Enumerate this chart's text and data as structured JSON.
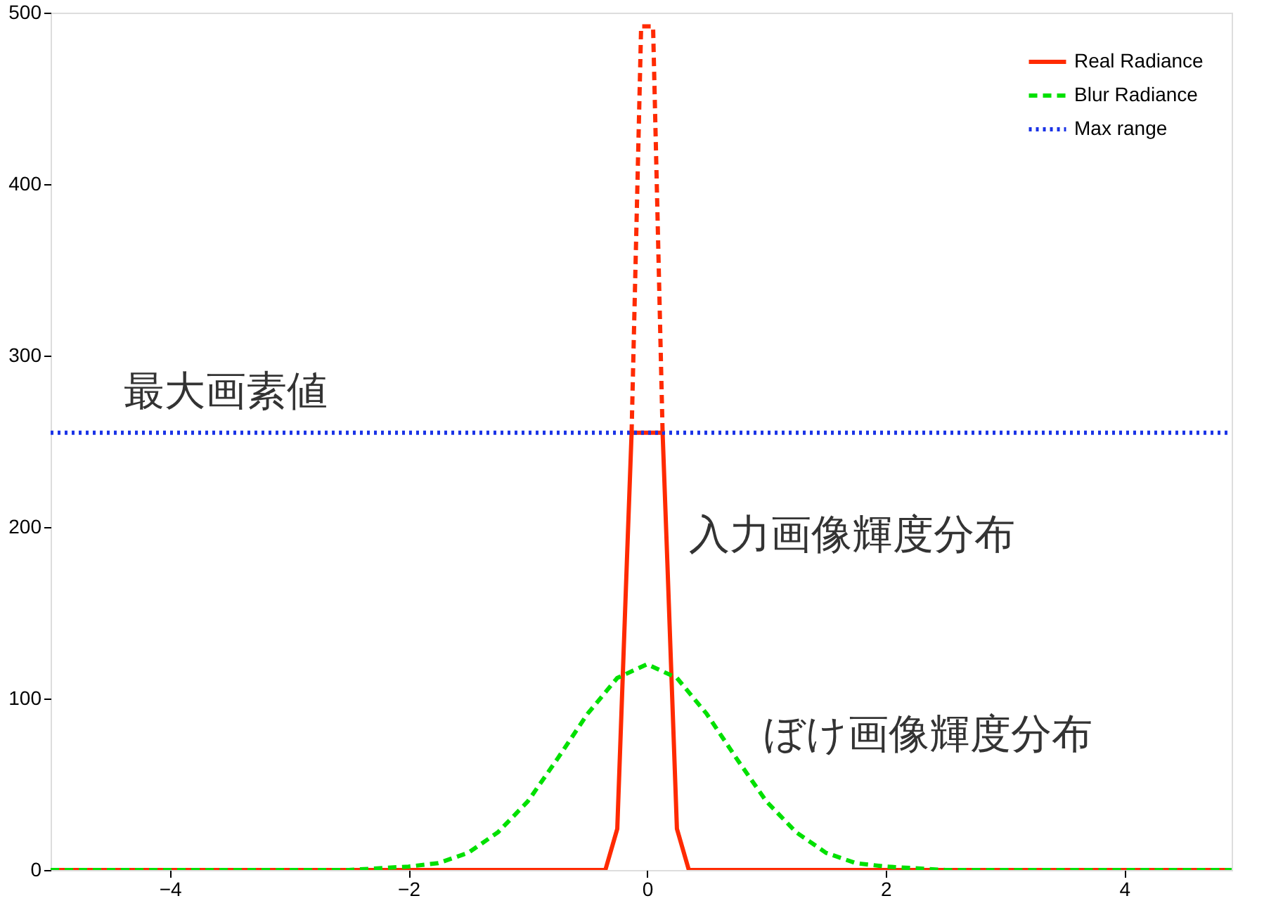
{
  "chart_data": {
    "type": "line",
    "xlim": [
      -5,
      4.9
    ],
    "ylim": [
      0,
      500
    ],
    "xticks": [
      -4,
      -2,
      0,
      2,
      4
    ],
    "yticks": [
      0,
      100,
      200,
      300,
      400,
      500
    ],
    "grid": false,
    "legend": "top right",
    "marker": "none",
    "series": [
      {
        "name": "Real Radiance",
        "color": "#ff2a00",
        "line_style": "solid",
        "x": [
          -5,
          -0.35,
          -0.25,
          -0.17,
          -0.13,
          0.13,
          0.17,
          0.25,
          0.35,
          4.9
        ],
        "values": [
          0,
          0,
          24,
          179,
          255,
          255,
          179,
          24,
          0,
          0
        ]
      },
      {
        "color": "#ff2a00",
        "line_style": "dashed",
        "x": [
          -0.13,
          -0.05,
          0.05,
          0.13
        ],
        "values": [
          255,
          492,
          492,
          255
        ]
      },
      {
        "name": "Blur Radiance",
        "color": "#00e000",
        "line_style": "dashed",
        "x": [
          -5,
          -3,
          -2.5,
          -2,
          -1.75,
          -1.5,
          -1.25,
          -1,
          -0.75,
          -0.5,
          -0.25,
          0,
          0.25,
          0.5,
          0.75,
          1,
          1.25,
          1.5,
          1.75,
          2,
          2.5,
          3,
          4.9
        ],
        "values": [
          0,
          0,
          0,
          2,
          4,
          10,
          22,
          40,
          65,
          91,
          112,
          120,
          112,
          91,
          65,
          40,
          22,
          10,
          4,
          2,
          0,
          0,
          0
        ]
      },
      {
        "name": "Max range",
        "color": "#1a33e6",
        "line_style": "dotted",
        "x": [
          -5,
          4.9
        ],
        "values": [
          255,
          255
        ]
      }
    ],
    "annotations": [
      "最大画素値",
      "入力画像輝度分布",
      "ぼけ画像輝度分布"
    ]
  }
}
